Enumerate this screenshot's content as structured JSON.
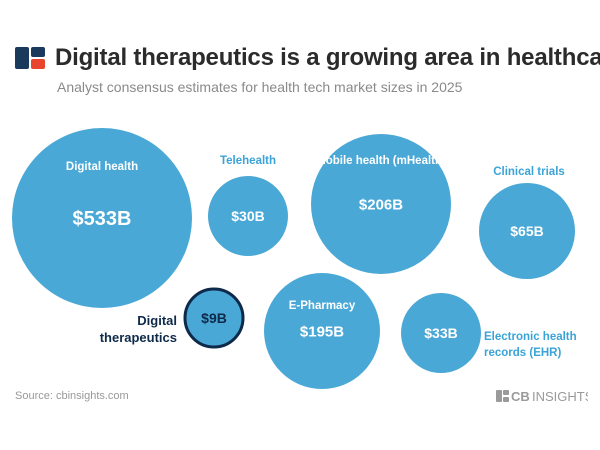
{
  "header": {
    "title": "Digital therapeutics is a growing area in healthcare",
    "subtitle": "Analyst consensus estimates for health tech market sizes in 2025"
  },
  "footer": {
    "source": "Source: cbinsights.com",
    "brand_cb": "CB",
    "brand_name": "INSIGHTS"
  },
  "colors": {
    "bubble_fill": "#4aa8d6",
    "highlight_stroke": "#0e2a4a",
    "highlight_text": "#0e2a4a",
    "outside_label": "#3aa3d8",
    "logo_dark": "#1a3a5c",
    "logo_red": "#e9442e",
    "brand_gray": "#9a9a9a"
  },
  "chart_data": {
    "type": "bubble",
    "unit": "USD billions",
    "items": [
      {
        "name": "Digital health",
        "label": "$533B",
        "value": 533,
        "label_position": "inside",
        "highlight": false
      },
      {
        "name": "Telehealth",
        "label": "$30B",
        "value": 30,
        "label_position": "above",
        "highlight": false
      },
      {
        "name": "Mobile health (mHealth)",
        "label": "$206B",
        "value": 206,
        "label_position": "inside",
        "highlight": false
      },
      {
        "name": "Clinical trials",
        "label": "$65B",
        "value": 65,
        "label_position": "above",
        "highlight": false
      },
      {
        "name": "Digital therapeutics",
        "label": "$9B",
        "value": 9,
        "label_position": "left",
        "highlight": true
      },
      {
        "name": "E-Pharmacy",
        "label": "$195B",
        "value": 195,
        "label_position": "inside",
        "highlight": false
      },
      {
        "name": "Electronic health records (EHR)",
        "label": "$33B",
        "value": 33,
        "label_position": "right",
        "highlight": false
      }
    ]
  }
}
